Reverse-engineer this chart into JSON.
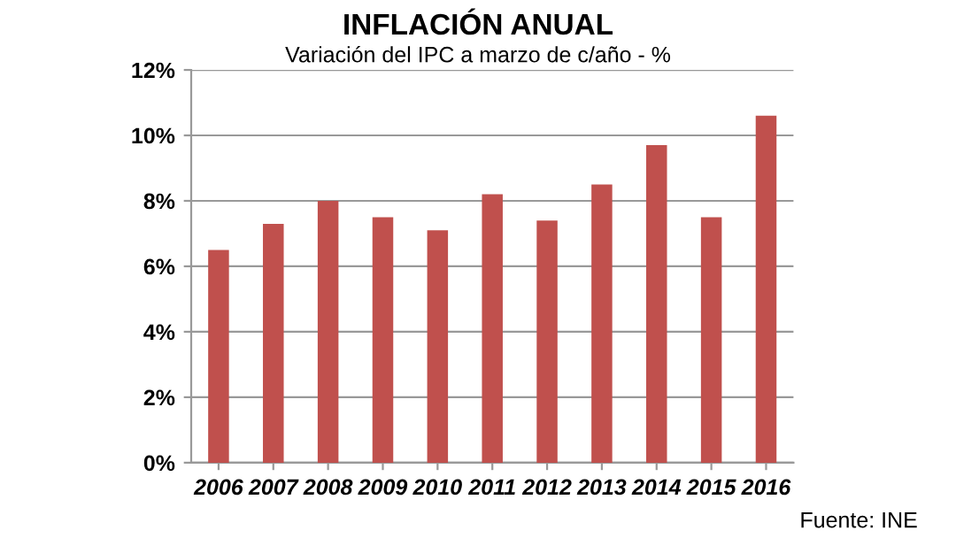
{
  "chart_data": {
    "type": "bar",
    "title": "INFLACIÓN ANUAL",
    "subtitle": "Variación del IPC a marzo de c/año - %",
    "categories": [
      "2006",
      "2007",
      "2008",
      "2009",
      "2010",
      "2011",
      "2012",
      "2013",
      "2014",
      "2015",
      "2016"
    ],
    "values": [
      6.5,
      7.3,
      8.0,
      7.5,
      7.1,
      8.2,
      7.4,
      8.5,
      9.7,
      7.5,
      10.6
    ],
    "color": "#c0504d",
    "ylim": [
      0,
      12
    ],
    "yticks": [
      {
        "value": 0,
        "label": "0%"
      },
      {
        "value": 2,
        "label": "2%"
      },
      {
        "value": 4,
        "label": "4%"
      },
      {
        "value": 6,
        "label": "6%"
      },
      {
        "value": 8,
        "label": "8%"
      },
      {
        "value": 10,
        "label": "10%"
      },
      {
        "value": 12,
        "label": "12%"
      }
    ],
    "grid": "y",
    "annotations": [
      "Fuente: INE"
    ]
  }
}
